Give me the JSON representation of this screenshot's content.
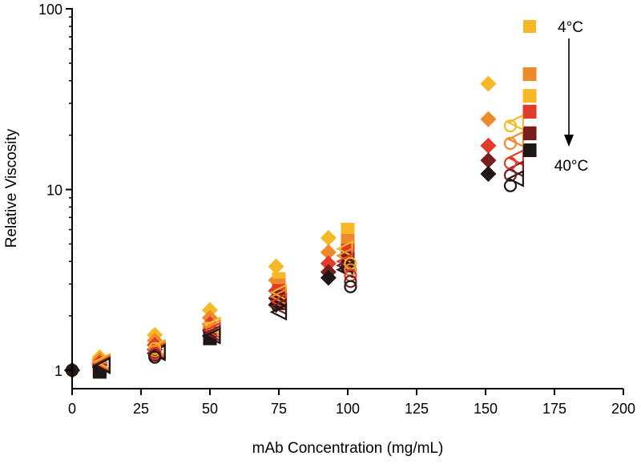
{
  "chart_data": {
    "type": "scatter",
    "title": "",
    "xlabel": "mAb Concentration (mg/mL)",
    "ylabel": "Relative Viscosity",
    "xlim": [
      0,
      200
    ],
    "ylim": [
      0.8,
      100
    ],
    "yscale": "log",
    "x_ticks": [
      0,
      25,
      50,
      75,
      100,
      125,
      150,
      175,
      200
    ],
    "y_ticks": [
      1,
      10,
      100
    ],
    "x_tick_labels": [
      "0",
      "25",
      "50",
      "75",
      "100",
      "125",
      "150",
      "175",
      "200"
    ],
    "y_tick_labels": [
      "1",
      "10",
      "100"
    ],
    "grid": false,
    "legend": {
      "placement": "top-right",
      "top_label": "4°C",
      "bottom_label": "40°C",
      "colors": [
        "#f6b826",
        "#ee8a2a",
        "#e13c2b",
        "#7a1d1e",
        "#1f1715"
      ]
    },
    "series": [
      {
        "name": "diamond-4C",
        "marker": "diamond",
        "color": "#f6b826",
        "x": [
          0,
          10,
          30,
          50,
          74,
          93,
          151
        ],
        "y": [
          1.0,
          1.18,
          1.57,
          2.15,
          3.75,
          5.4,
          38.5
        ]
      },
      {
        "name": "diamond-mid1",
        "marker": "diamond",
        "color": "#ee8a2a",
        "x": [
          0,
          10,
          30,
          50,
          74,
          93,
          151
        ],
        "y": [
          1.0,
          1.14,
          1.46,
          1.95,
          3.15,
          4.5,
          24.5
        ]
      },
      {
        "name": "diamond-mid2",
        "marker": "diamond",
        "color": "#e13c2b",
        "x": [
          0,
          10,
          30,
          50,
          74,
          93,
          151
        ],
        "y": [
          1.0,
          1.1,
          1.38,
          1.8,
          2.75,
          3.9,
          17.5
        ]
      },
      {
        "name": "diamond-mid3",
        "marker": "diamond",
        "color": "#7a1d1e",
        "x": [
          0,
          10,
          30,
          50,
          74,
          93,
          151
        ],
        "y": [
          1.0,
          1.07,
          1.3,
          1.66,
          2.5,
          3.5,
          14.5
        ]
      },
      {
        "name": "diamond-40C",
        "marker": "diamond",
        "color": "#1f1715",
        "x": [
          0,
          10,
          30,
          50,
          74,
          93,
          151
        ],
        "y": [
          1.0,
          1.04,
          1.24,
          1.55,
          2.3,
          3.25,
          12.2
        ]
      },
      {
        "name": "square-4C",
        "marker": "square",
        "color": "#f6b826",
        "x": [
          10,
          50,
          75,
          100,
          166
        ],
        "y": [
          1.02,
          1.7,
          3.2,
          6.0,
          33.0
        ]
      },
      {
        "name": "square-mid1",
        "marker": "square",
        "color": "#ee8a2a",
        "x": [
          10,
          50,
          75,
          100,
          166
        ],
        "y": [
          1.01,
          1.65,
          2.95,
          5.2,
          43.5
        ]
      },
      {
        "name": "square-mid2",
        "marker": "square",
        "color": "#e13c2b",
        "x": [
          10,
          50,
          75,
          100,
          166
        ],
        "y": [
          1.0,
          1.6,
          2.75,
          4.6,
          27.0
        ]
      },
      {
        "name": "square-mid3",
        "marker": "square",
        "color": "#7a1d1e",
        "x": [
          10,
          50,
          75,
          100,
          166
        ],
        "y": [
          0.99,
          1.55,
          2.55,
          4.15,
          20.5
        ]
      },
      {
        "name": "square-40C",
        "marker": "square",
        "color": "#1f1715",
        "x": [
          10,
          50,
          75,
          100,
          166
        ],
        "y": [
          0.98,
          1.5,
          2.35,
          3.8,
          16.5
        ]
      },
      {
        "name": "circle-4C",
        "marker": "circle",
        "color": "#f6b826",
        "x": [
          0,
          30,
          101,
          159
        ],
        "y": [
          1.0,
          1.32,
          3.9,
          22.5
        ]
      },
      {
        "name": "circle-mid1",
        "marker": "circle",
        "color": "#ee8a2a",
        "x": [
          0,
          30,
          101,
          159
        ],
        "y": [
          1.0,
          1.28,
          3.6,
          18.0
        ]
      },
      {
        "name": "circle-mid2",
        "marker": "circle",
        "color": "#e13c2b",
        "x": [
          0,
          30,
          101,
          159
        ],
        "y": [
          1.0,
          1.24,
          3.35,
          14.0
        ]
      },
      {
        "name": "circle-mid3",
        "marker": "circle",
        "color": "#7a1d1e",
        "x": [
          0,
          30,
          101,
          159
        ],
        "y": [
          1.0,
          1.21,
          3.1,
          12.0
        ]
      },
      {
        "name": "circle-40C",
        "marker": "circle",
        "color": "#1f1715",
        "x": [
          0,
          30,
          101,
          159
        ],
        "y": [
          1.0,
          1.18,
          2.9,
          10.5
        ]
      },
      {
        "name": "triangle-4C",
        "marker": "triangle-left",
        "color": "#f6b826",
        "x": [
          11,
          31,
          51,
          75,
          99,
          161
        ],
        "y": [
          1.12,
          1.34,
          1.78,
          2.7,
          4.7,
          23.5
        ]
      },
      {
        "name": "triangle-mid1",
        "marker": "triangle-left",
        "color": "#ee8a2a",
        "x": [
          11,
          31,
          51,
          75,
          99,
          161
        ],
        "y": [
          1.1,
          1.31,
          1.72,
          2.55,
          4.3,
          19.0
        ]
      },
      {
        "name": "triangle-mid2",
        "marker": "triangle-left",
        "color": "#e13c2b",
        "x": [
          11,
          31,
          51,
          75,
          99,
          161
        ],
        "y": [
          1.08,
          1.28,
          1.66,
          2.4,
          4.0,
          15.0
        ]
      },
      {
        "name": "triangle-mid3",
        "marker": "triangle-left",
        "color": "#7a1d1e",
        "x": [
          11,
          31,
          51,
          75,
          99,
          161
        ],
        "y": [
          1.07,
          1.26,
          1.6,
          2.25,
          3.8,
          13.0
        ]
      },
      {
        "name": "triangle-40C",
        "marker": "triangle-left",
        "color": "#1f1715",
        "x": [
          11,
          31,
          51,
          75,
          99,
          161
        ],
        "y": [
          1.06,
          1.25,
          1.55,
          2.1,
          3.6,
          11.5
        ]
      }
    ]
  }
}
